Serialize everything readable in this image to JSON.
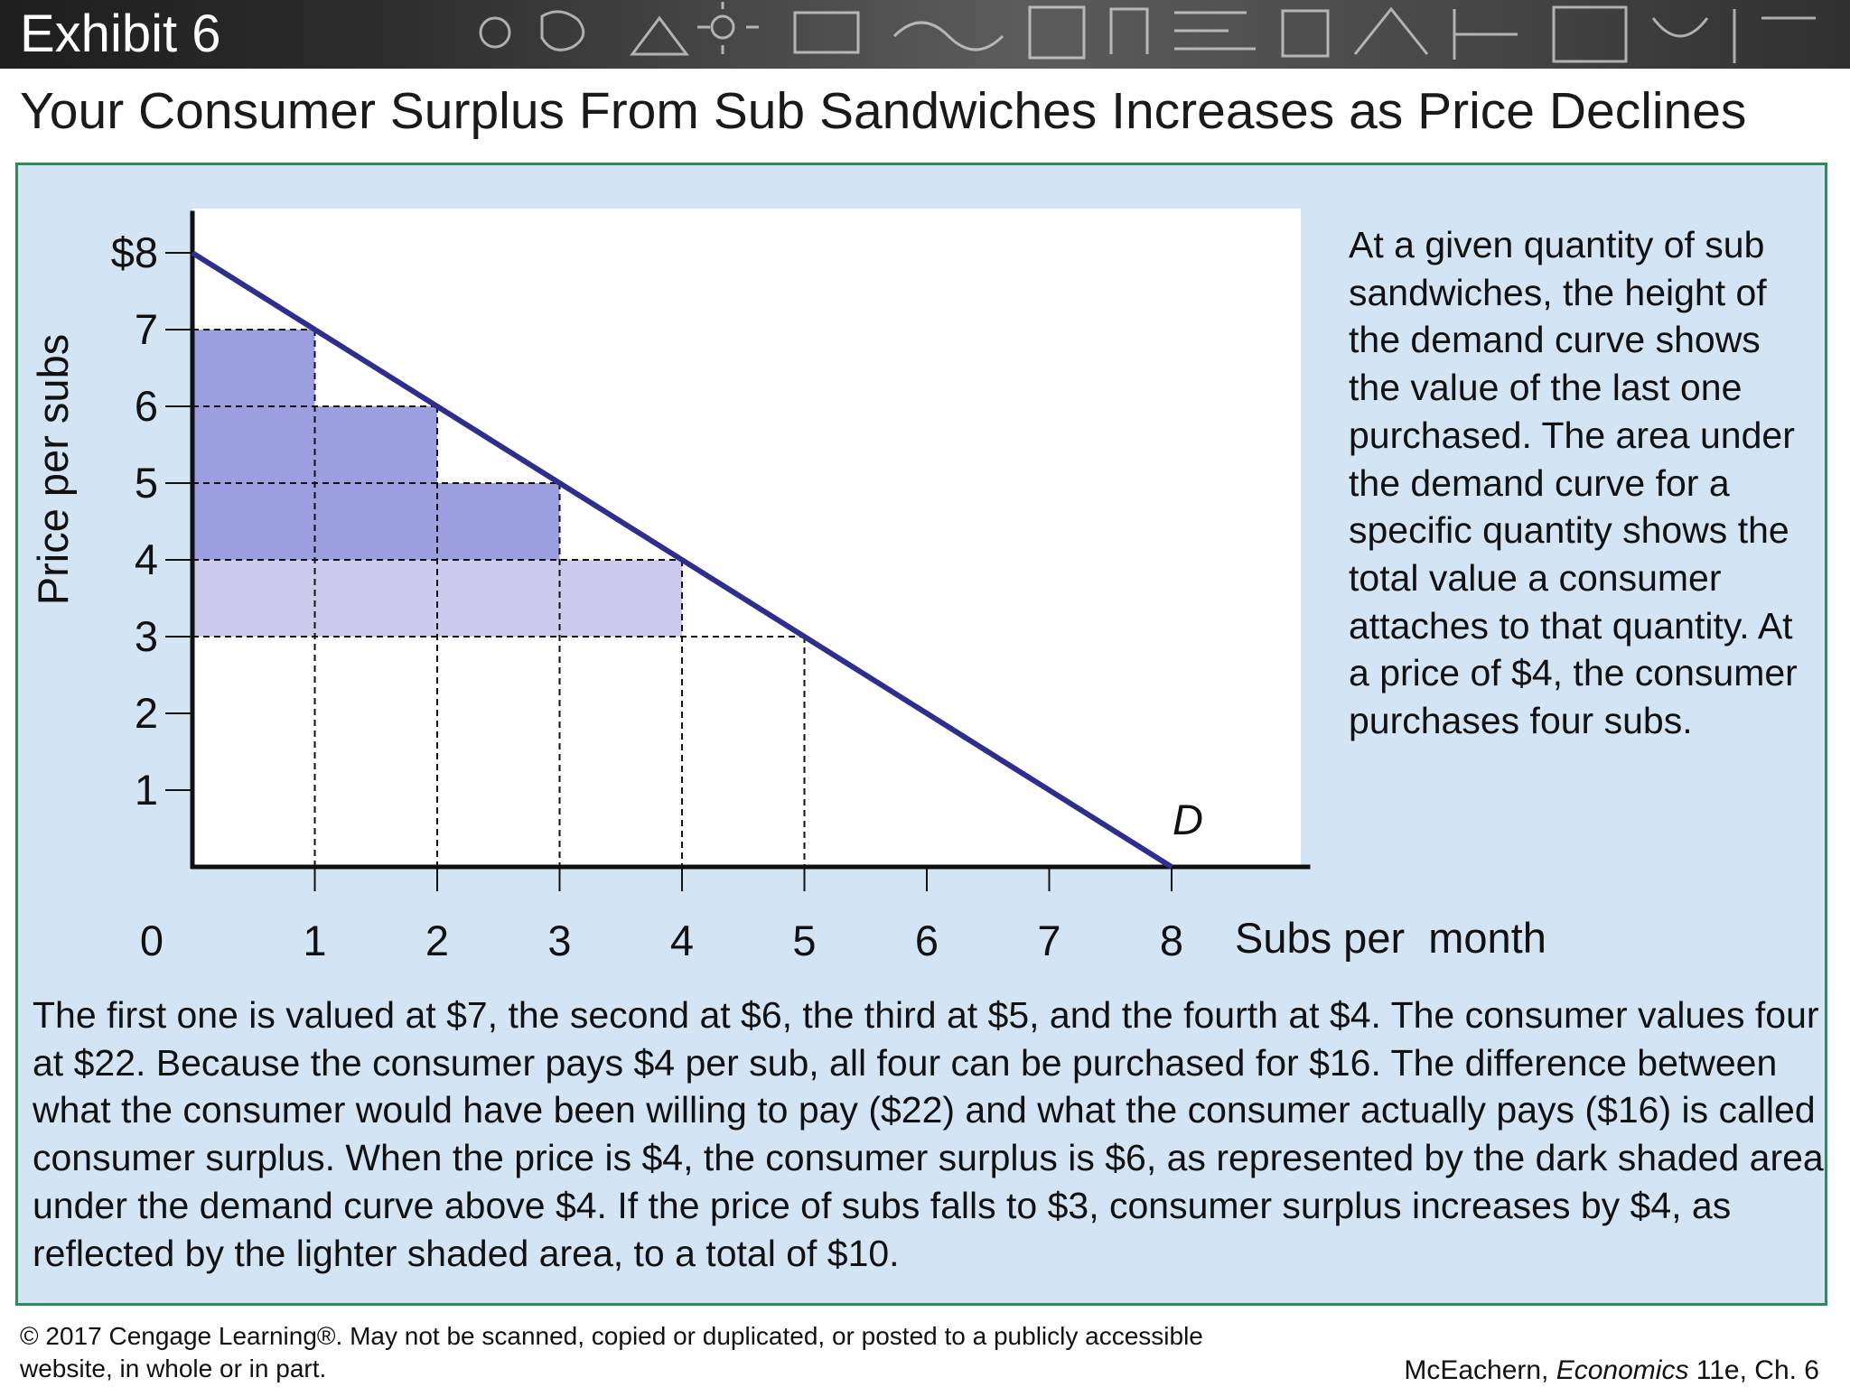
{
  "header": {
    "exhibit": "Exhibit 6",
    "title": "Your Consumer Surplus From Sub Sandwiches Increases as Price Declines"
  },
  "colors": {
    "panel_bg": "#d3e4f4",
    "panel_border": "#2e8b57",
    "demand_line": "#2e2e8f",
    "dark_shade": "#9b9fdf",
    "light_shade": "#cccbee",
    "axis": "#111111"
  },
  "chart_data": {
    "type": "line",
    "title": "Your Consumer Surplus From Sub Sandwiches Increases as Price Declines",
    "xlabel": "Subs per  month",
    "ylabel": "Price per subs",
    "xlim": [
      0,
      9
    ],
    "ylim": [
      0,
      8.5
    ],
    "x_ticks": [
      0,
      1,
      2,
      3,
      4,
      5,
      6,
      7,
      8
    ],
    "x_tick_labels": [
      "0",
      "1",
      "2",
      "3",
      "4",
      "5",
      "6",
      "7",
      "8"
    ],
    "y_ticks": [
      1,
      2,
      3,
      4,
      5,
      6,
      7,
      8
    ],
    "y_tick_labels": [
      "1",
      "2",
      "3",
      "4",
      "5",
      "6",
      "7",
      "$8"
    ],
    "grid": false,
    "series": [
      {
        "name": "D",
        "x": [
          0,
          8
        ],
        "y": [
          8,
          0
        ]
      }
    ],
    "dark_shaded_blocks": [
      {
        "x0": 0,
        "x1": 1,
        "y0": 4,
        "y1": 7
      },
      {
        "x0": 1,
        "x1": 2,
        "y0": 4,
        "y1": 6
      },
      {
        "x0": 2,
        "x1": 3,
        "y0": 4,
        "y1": 5
      }
    ],
    "light_shaded_area": {
      "x0": 0,
      "x1": 4,
      "y0": 3,
      "y1": 4
    },
    "guide_points": [
      {
        "x": 1,
        "y": 7
      },
      {
        "x": 2,
        "y": 6
      },
      {
        "x": 3,
        "y": 5
      },
      {
        "x": 4,
        "y": 4
      },
      {
        "x": 5,
        "y": 3
      }
    ],
    "annotations": [
      {
        "text": "D",
        "x": 8,
        "y": 0
      }
    ]
  },
  "side_text": "At a given quantity of sub sandwiches, the height of the demand curve shows the value of the last one purchased. The area under the demand curve for a specific quantity shows the total value a consumer attaches to that quantity. At a price of $4, the consumer purchases four subs.",
  "bottom_text": "The first one is valued at $7, the second at $6, the third at $5, and the fourth at $4. The consumer values four at $22. Because the consumer pays $4 per sub, all four can be purchased for $16. The difference between what the consumer would have been willing to pay ($22) and what the consumer actually pays ($16) is called consumer surplus. When the price is $4, the consumer surplus is $6, as represented by the dark shaded area under the demand curve above $4. If the price of subs falls to $3, consumer surplus increases by $4, as reflected by the lighter shaded area, to a total of $10.",
  "footer": {
    "copyright": "© 2017 Cengage Learning®. May not be scanned, copied or duplicated, or posted to a publicly accessible website, in whole or in part.",
    "credit_author": "McEachern, ",
    "credit_book": "Economics",
    "credit_edition": " 11e, Ch. 6"
  }
}
